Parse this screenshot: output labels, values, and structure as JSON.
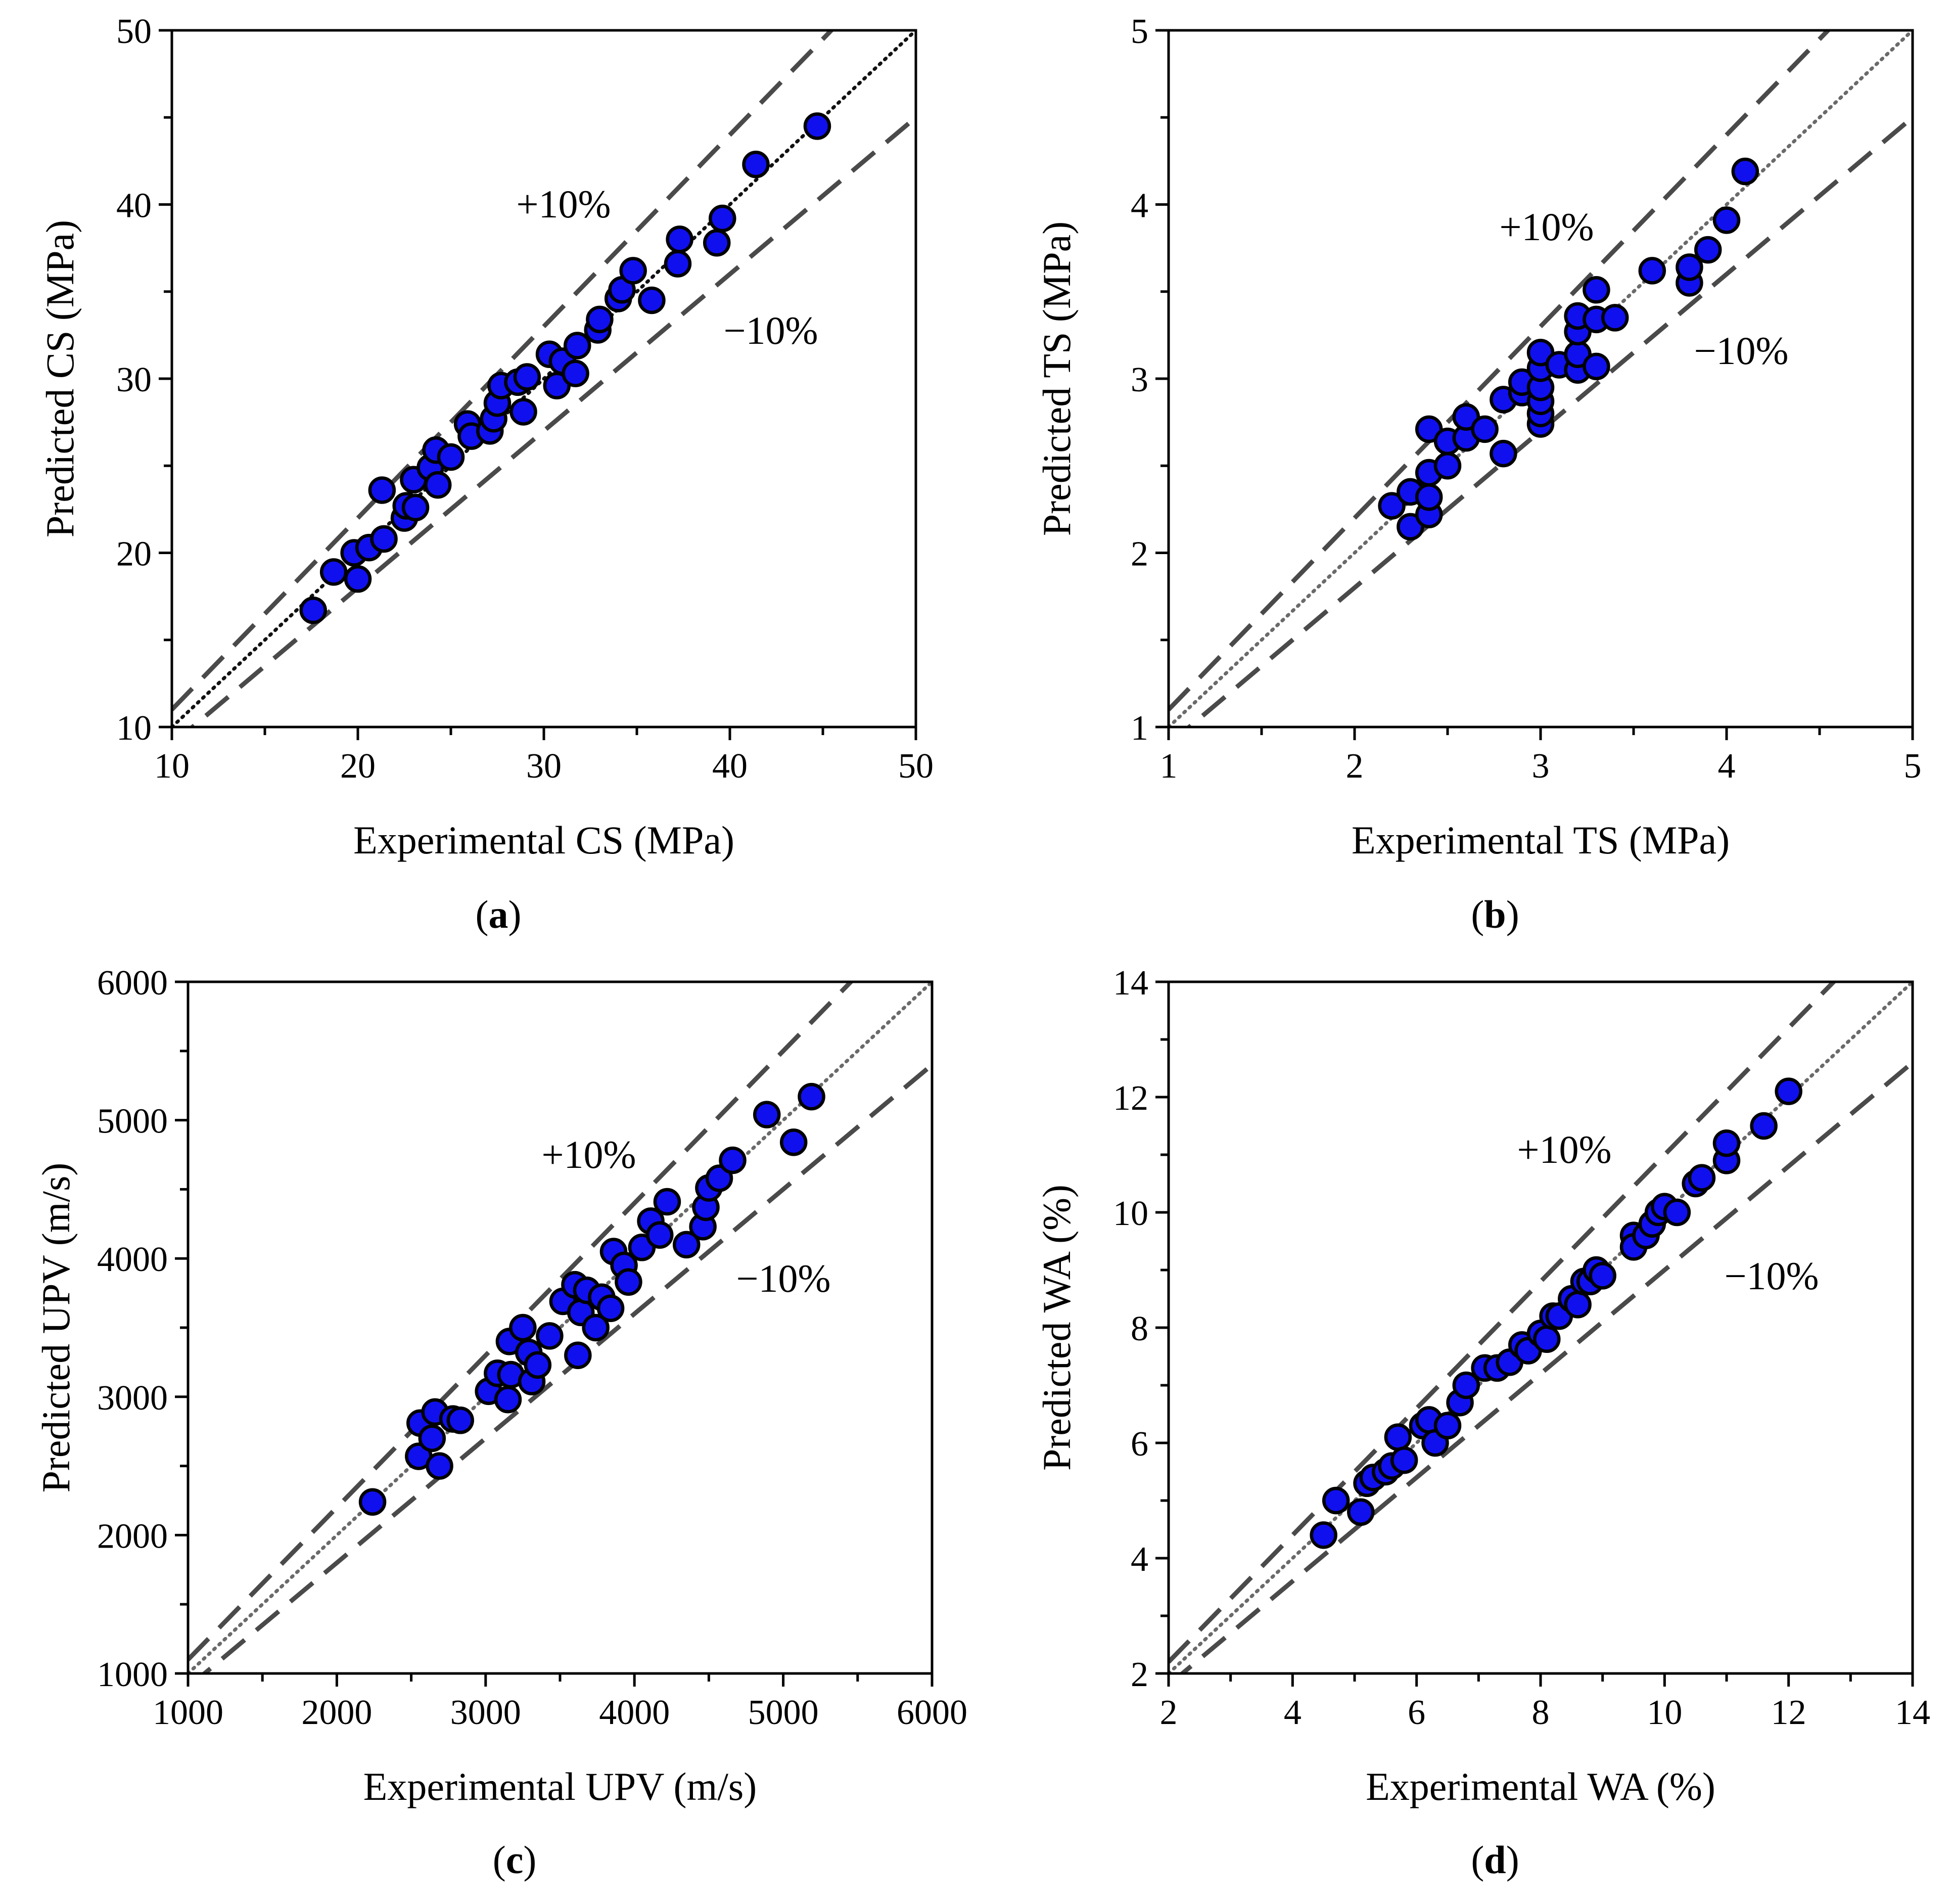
{
  "chart_data": [
    {
      "id": "a",
      "type": "scatter",
      "caption_label": "a",
      "xlabel": "Experimental CS (MPa)",
      "ylabel": "Predicted CS (MPa)",
      "xlim": [
        10,
        50
      ],
      "ylim": [
        10,
        50
      ],
      "xticks": [
        "10",
        "20",
        "30",
        "40",
        "50"
      ],
      "yticks": [
        "10",
        "20",
        "30",
        "40",
        "50"
      ],
      "upper_band_label": "+10%",
      "lower_band_label": "−10%",
      "band_pct": 10,
      "points": [
        [
          17.6,
          16.7
        ],
        [
          18.7,
          18.9
        ],
        [
          19.8,
          20.0
        ],
        [
          20.0,
          18.5
        ],
        [
          20.6,
          20.3
        ],
        [
          21.3,
          23.6
        ],
        [
          21.4,
          20.8
        ],
        [
          22.5,
          22.0
        ],
        [
          22.6,
          22.7
        ],
        [
          23.0,
          24.2
        ],
        [
          23.1,
          22.6
        ],
        [
          23.9,
          24.9
        ],
        [
          24.2,
          25.9
        ],
        [
          24.3,
          23.9
        ],
        [
          25.0,
          25.5
        ],
        [
          25.9,
          27.4
        ],
        [
          26.1,
          26.7
        ],
        [
          27.1,
          27.0
        ],
        [
          27.3,
          27.7
        ],
        [
          27.5,
          28.6
        ],
        [
          27.7,
          29.6
        ],
        [
          28.6,
          29.8
        ],
        [
          28.9,
          28.1
        ],
        [
          29.1,
          30.1
        ],
        [
          30.3,
          31.4
        ],
        [
          30.7,
          29.6
        ],
        [
          31.0,
          31.0
        ],
        [
          31.7,
          30.3
        ],
        [
          31.8,
          31.9
        ],
        [
          32.9,
          32.8
        ],
        [
          33.0,
          33.4
        ],
        [
          34.0,
          34.6
        ],
        [
          34.2,
          35.1
        ],
        [
          34.8,
          36.2
        ],
        [
          35.8,
          34.5
        ],
        [
          37.2,
          36.6
        ],
        [
          37.3,
          38.0
        ],
        [
          39.3,
          37.8
        ],
        [
          39.6,
          39.2
        ],
        [
          41.4,
          42.3
        ],
        [
          44.7,
          44.5
        ]
      ]
    },
    {
      "id": "b",
      "type": "scatter",
      "caption_label": "b",
      "xlabel": "Experimental TS (MPa)",
      "ylabel": "Predicted TS (MPa)",
      "xlim": [
        1,
        5
      ],
      "ylim": [
        1,
        5
      ],
      "xticks": [
        "1",
        "2",
        "3",
        "4",
        "5"
      ],
      "yticks": [
        "1",
        "2",
        "3",
        "4",
        "5"
      ],
      "upper_band_label": "+10%",
      "lower_band_label": "−10%",
      "band_pct": 10,
      "points": [
        [
          2.2,
          2.27
        ],
        [
          2.3,
          2.15
        ],
        [
          2.3,
          2.35
        ],
        [
          2.4,
          2.22
        ],
        [
          2.4,
          2.32
        ],
        [
          2.4,
          2.46
        ],
        [
          2.4,
          2.71
        ],
        [
          2.5,
          2.5
        ],
        [
          2.5,
          2.64
        ],
        [
          2.6,
          2.66
        ],
        [
          2.6,
          2.78
        ],
        [
          2.7,
          2.71
        ],
        [
          2.8,
          2.57
        ],
        [
          2.8,
          2.88
        ],
        [
          2.9,
          2.92
        ],
        [
          2.9,
          2.98
        ],
        [
          3.0,
          2.74
        ],
        [
          3.0,
          2.8
        ],
        [
          3.0,
          2.87
        ],
        [
          3.0,
          2.95
        ],
        [
          3.0,
          3.06
        ],
        [
          3.0,
          3.15
        ],
        [
          3.1,
          3.08
        ],
        [
          3.2,
          3.05
        ],
        [
          3.2,
          3.14
        ],
        [
          3.2,
          3.27
        ],
        [
          3.2,
          3.36
        ],
        [
          3.3,
          3.07
        ],
        [
          3.3,
          3.34
        ],
        [
          3.3,
          3.51
        ],
        [
          3.4,
          3.35
        ],
        [
          3.6,
          3.62
        ],
        [
          3.8,
          3.55
        ],
        [
          3.8,
          3.64
        ],
        [
          3.9,
          3.74
        ],
        [
          4.0,
          3.91
        ],
        [
          4.1,
          4.19
        ]
      ]
    },
    {
      "id": "c",
      "type": "scatter",
      "caption_label": "c",
      "xlabel": "Experimental UPV (m/s)",
      "ylabel": "Predicted UPV (m/s)",
      "xlim": [
        1000,
        6000
      ],
      "ylim": [
        1000,
        6000
      ],
      "xticks": [
        "1000",
        "2000",
        "3000",
        "4000",
        "5000",
        "6000"
      ],
      "yticks": [
        "1000",
        "2000",
        "3000",
        "4000",
        "5000",
        "6000"
      ],
      "upper_band_label": "+10%",
      "lower_band_label": "−10%",
      "band_pct": 10,
      "points": [
        [
          2240,
          2240
        ],
        [
          2550,
          2570
        ],
        [
          2560,
          2810
        ],
        [
          2640,
          2700
        ],
        [
          2660,
          2890
        ],
        [
          2690,
          2500
        ],
        [
          2780,
          2840
        ],
        [
          2830,
          2830
        ],
        [
          3020,
          3040
        ],
        [
          3080,
          3170
        ],
        [
          3150,
          2980
        ],
        [
          3160,
          3400
        ],
        [
          3170,
          3160
        ],
        [
          3250,
          3500
        ],
        [
          3290,
          3320
        ],
        [
          3310,
          3110
        ],
        [
          3350,
          3230
        ],
        [
          3430,
          3440
        ],
        [
          3520,
          3690
        ],
        [
          3600,
          3810
        ],
        [
          3620,
          3300
        ],
        [
          3640,
          3610
        ],
        [
          3680,
          3770
        ],
        [
          3740,
          3500
        ],
        [
          3780,
          3720
        ],
        [
          3840,
          3640
        ],
        [
          3860,
          4050
        ],
        [
          3930,
          3950
        ],
        [
          3960,
          3830
        ],
        [
          4050,
          4080
        ],
        [
          4110,
          4270
        ],
        [
          4170,
          4170
        ],
        [
          4220,
          4410
        ],
        [
          4350,
          4100
        ],
        [
          4460,
          4230
        ],
        [
          4480,
          4370
        ],
        [
          4500,
          4510
        ],
        [
          4570,
          4580
        ],
        [
          4660,
          4710
        ],
        [
          4890,
          5040
        ],
        [
          5070,
          4840
        ],
        [
          5190,
          5170
        ]
      ]
    },
    {
      "id": "d",
      "type": "scatter",
      "caption_label": "d",
      "xlabel": "Experimental WA (%)",
      "ylabel": "Predicted WA (%)",
      "xlim": [
        2,
        14
      ],
      "ylim": [
        2,
        14
      ],
      "xticks": [
        "2",
        "4",
        "6",
        "8",
        "10",
        "12",
        "14"
      ],
      "yticks": [
        "2",
        "4",
        "6",
        "8",
        "10",
        "12",
        "14"
      ],
      "upper_band_label": "+10%",
      "lower_band_label": "−10%",
      "band_pct": 10,
      "points": [
        [
          4.5,
          4.4
        ],
        [
          4.7,
          5.0
        ],
        [
          5.1,
          4.8
        ],
        [
          5.2,
          5.3
        ],
        [
          5.3,
          5.4
        ],
        [
          5.5,
          5.5
        ],
        [
          5.6,
          5.6
        ],
        [
          5.7,
          6.1
        ],
        [
          5.8,
          5.7
        ],
        [
          6.1,
          6.3
        ],
        [
          6.2,
          6.4
        ],
        [
          6.3,
          6.0
        ],
        [
          6.5,
          6.3
        ],
        [
          6.7,
          6.7
        ],
        [
          6.8,
          7.0
        ],
        [
          7.1,
          7.3
        ],
        [
          7.3,
          7.3
        ],
        [
          7.5,
          7.4
        ],
        [
          7.7,
          7.7
        ],
        [
          7.8,
          7.6
        ],
        [
          8.0,
          7.9
        ],
        [
          8.1,
          7.8
        ],
        [
          8.2,
          8.2
        ],
        [
          8.3,
          8.2
        ],
        [
          8.5,
          8.5
        ],
        [
          8.6,
          8.4
        ],
        [
          8.7,
          8.8
        ],
        [
          8.8,
          8.8
        ],
        [
          8.9,
          9.0
        ],
        [
          9.0,
          8.9
        ],
        [
          9.5,
          9.6
        ],
        [
          9.5,
          9.4
        ],
        [
          9.7,
          9.6
        ],
        [
          9.8,
          9.8
        ],
        [
          9.9,
          10.0
        ],
        [
          10.0,
          10.1
        ],
        [
          10.2,
          10.0
        ],
        [
          10.5,
          10.5
        ],
        [
          10.6,
          10.6
        ],
        [
          11.0,
          10.9
        ],
        [
          11.0,
          11.2
        ],
        [
          11.6,
          11.5
        ],
        [
          12.0,
          12.1
        ]
      ]
    }
  ]
}
